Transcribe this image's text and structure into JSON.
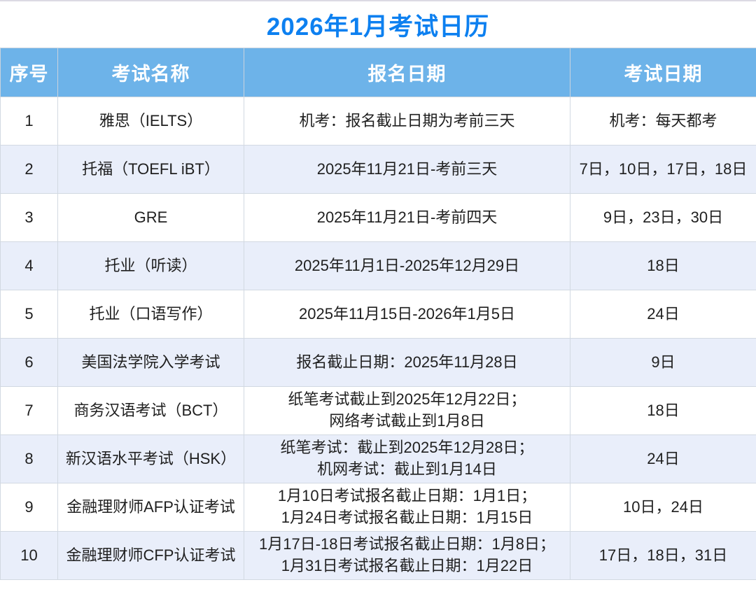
{
  "title": "2026年1月考试日历",
  "colors": {
    "title_text": "#0d80f0",
    "header_bg": "#6db3e9",
    "header_text": "#ffffff",
    "row_alt_bg": "#e9eefa",
    "body_text": "#1f1f1f",
    "grid_line": "#d2d9e2"
  },
  "table": {
    "headers": [
      "序号",
      "考试名称",
      "报名日期",
      "考试日期"
    ],
    "rows": [
      {
        "no": "1",
        "name": "雅思（IELTS）",
        "reg": "机考：报名截止日期为考前三天",
        "date": "机考：每天都考"
      },
      {
        "no": "2",
        "name": "托福（TOEFL iBT）",
        "reg": "2025年11月21日-考前三天",
        "date": "7日，10日，17日，18日"
      },
      {
        "no": "3",
        "name": "GRE",
        "reg": "2025年11月21日-考前四天",
        "date": "9日，23日，30日"
      },
      {
        "no": "4",
        "name": "托业（听读）",
        "reg": "2025年11月1日-2025年12月29日",
        "date": "18日"
      },
      {
        "no": "5",
        "name": "托业（口语写作）",
        "reg": "2025年11月15日-2026年1月5日",
        "date": "24日"
      },
      {
        "no": "6",
        "name": "美国法学院入学考试",
        "reg": "报名截止日期：2025年11月28日",
        "date": "9日"
      },
      {
        "no": "7",
        "name": "商务汉语考试（BCT）",
        "reg": "纸笔考试截止到2025年12月22日；\n网络考试截止到1月8日",
        "date": "18日"
      },
      {
        "no": "8",
        "name": "新汉语水平考试（HSK）",
        "reg": "纸笔考试：截止到2025年12月28日；\n机网考试：截止到1月14日",
        "date": "24日"
      },
      {
        "no": "9",
        "name": "金融理财师AFP认证考试",
        "reg": "1月10日考试报名截止日期：1月1日；\n1月24日考试报名截止日期：1月15日",
        "date": "10日，24日"
      },
      {
        "no": "10",
        "name": "金融理财师CFP认证考试",
        "reg": "1月17日-18日考试报名截止日期：1月8日；\n1月31日考试报名截止日期：1月22日",
        "date": "17日，18日，31日"
      }
    ]
  }
}
